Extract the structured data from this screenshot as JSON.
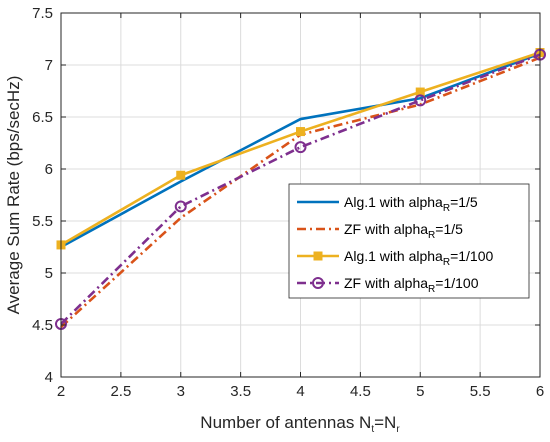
{
  "chart_data": {
    "type": "line",
    "xlabel": "Number of antennas N",
    "xlabel_sub_1": "t",
    "xlabel_mid": "=N",
    "xlabel_sub_2": "r",
    "ylabel": "Average Sum Rate (bps/secHz)",
    "xlim": [
      2,
      6
    ],
    "ylim": [
      4,
      7.5
    ],
    "xticks": [
      2,
      2.5,
      3,
      3.5,
      4,
      4.5,
      5,
      5.5,
      6
    ],
    "xtick_labels": [
      "2",
      "2.5",
      "3",
      "3.5",
      "4",
      "4.5",
      "5",
      "5.5",
      "6"
    ],
    "yticks": [
      4,
      4.5,
      5,
      5.5,
      6,
      6.5,
      7,
      7.5
    ],
    "ytick_labels": [
      "4",
      "4.5",
      "5",
      "5.5",
      "6",
      "6.5",
      "7",
      "7.5"
    ],
    "grid": true,
    "legend_position": "center-right",
    "x": [
      2,
      3,
      4,
      5,
      6
    ],
    "series": [
      {
        "name": "Alg.1 with alpha_R=1/5",
        "label_main": "Alg.1 with alpha",
        "label_sub": "R",
        "label_tail": "=1/5",
        "values": [
          5.25,
          5.88,
          6.48,
          6.68,
          7.11
        ],
        "color": "#0072BD",
        "dash": "solid",
        "marker": "none"
      },
      {
        "name": "ZF with alpha_R=1/5",
        "label_main": "ZF with alpha",
        "label_sub": "R",
        "label_tail": "=1/5",
        "values": [
          4.48,
          5.53,
          6.33,
          6.62,
          7.07
        ],
        "color": "#D95319",
        "dash": "dashdot",
        "marker": "none"
      },
      {
        "name": "Alg.1 with alpha_R=1/100",
        "label_main": "Alg.1 with alpha",
        "label_sub": "R",
        "label_tail": "=1/100",
        "values": [
          5.27,
          5.94,
          6.36,
          6.74,
          7.12
        ],
        "color": "#EDB120",
        "dash": "solid",
        "marker": "square"
      },
      {
        "name": "ZF with alpha_R=1/100",
        "label_main": "ZF with alpha",
        "label_sub": "R",
        "label_tail": "=1/100",
        "values": [
          4.51,
          5.64,
          6.21,
          6.66,
          7.1
        ],
        "color": "#7E2F8E",
        "dash": "dashdot",
        "marker": "circle"
      }
    ]
  }
}
